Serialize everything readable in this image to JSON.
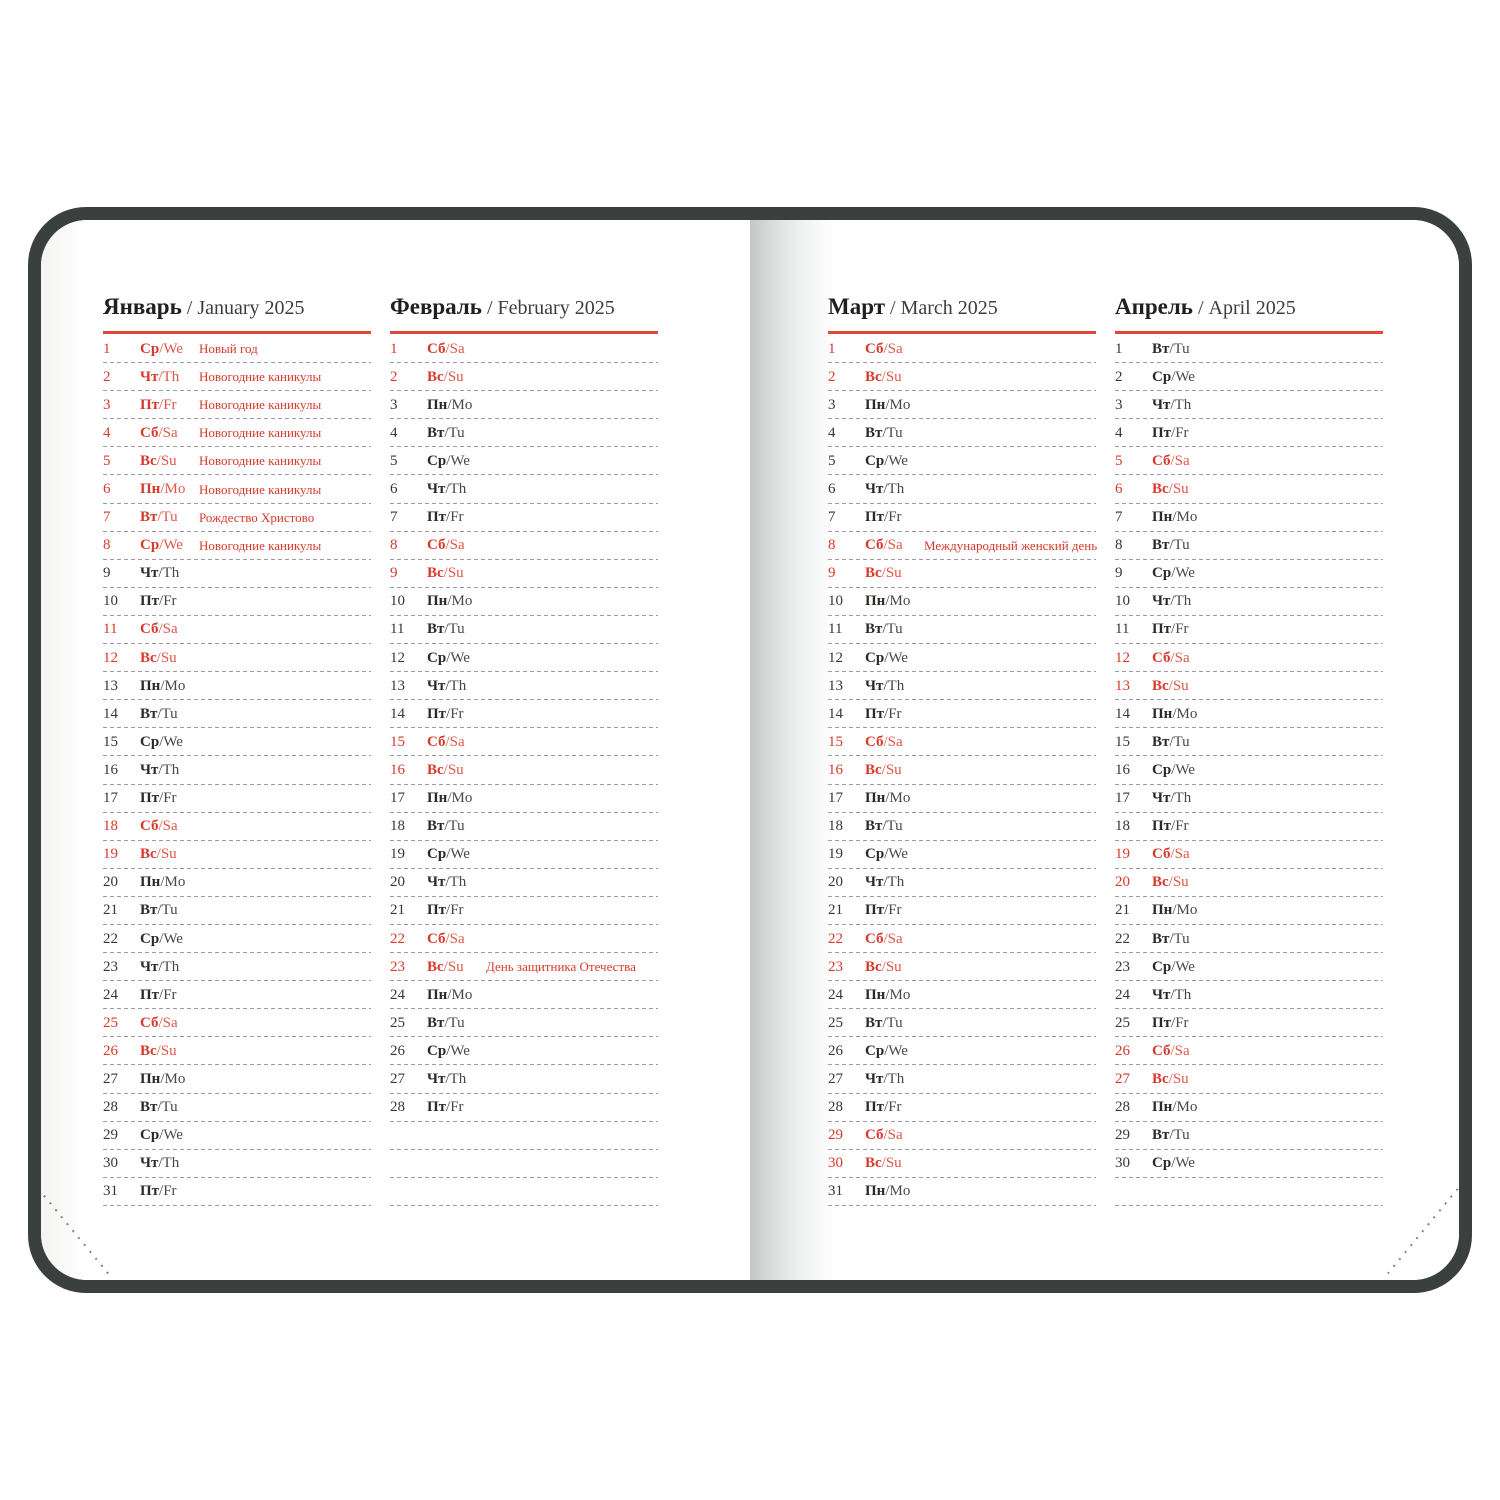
{
  "colors": {
    "cover": "#3a403e",
    "page": "#ffffff",
    "accent_red": "#d7392b",
    "header_underline_red": "#e0463a",
    "text_black": "#2c2a27",
    "dash_gray": "#9d9d9b"
  },
  "day_fields": [
    "day",
    "weekday_ru",
    "weekday_en",
    "is_red",
    "holiday"
  ],
  "months": [
    {
      "name_ru": "Январь",
      "separator": "/",
      "name_en": "January 2025",
      "trailing_empty_rows": 0,
      "days": [
        [
          1,
          "Ср",
          "We",
          1,
          "Новый год"
        ],
        [
          2,
          "Чт",
          "Th",
          1,
          "Новогодние каникулы"
        ],
        [
          3,
          "Пт",
          "Fr",
          1,
          "Новогодние каникулы"
        ],
        [
          4,
          "Сб",
          "Sa",
          1,
          "Новогодние каникулы"
        ],
        [
          5,
          "Вс",
          "Su",
          1,
          "Новогодние каникулы"
        ],
        [
          6,
          "Пн",
          "Mo",
          1,
          "Новогодние каникулы"
        ],
        [
          7,
          "Вт",
          "Tu",
          1,
          "Рождество Христово"
        ],
        [
          8,
          "Ср",
          "We",
          1,
          "Новогодние каникулы"
        ],
        [
          9,
          "Чт",
          "Th",
          0,
          ""
        ],
        [
          10,
          "Пт",
          "Fr",
          0,
          ""
        ],
        [
          11,
          "Сб",
          "Sa",
          1,
          ""
        ],
        [
          12,
          "Вс",
          "Su",
          1,
          ""
        ],
        [
          13,
          "Пн",
          "Mo",
          0,
          ""
        ],
        [
          14,
          "Вт",
          "Tu",
          0,
          ""
        ],
        [
          15,
          "Ср",
          "We",
          0,
          ""
        ],
        [
          16,
          "Чт",
          "Th",
          0,
          ""
        ],
        [
          17,
          "Пт",
          "Fr",
          0,
          ""
        ],
        [
          18,
          "Сб",
          "Sa",
          1,
          ""
        ],
        [
          19,
          "Вс",
          "Su",
          1,
          ""
        ],
        [
          20,
          "Пн",
          "Mo",
          0,
          ""
        ],
        [
          21,
          "Вт",
          "Tu",
          0,
          ""
        ],
        [
          22,
          "Ср",
          "We",
          0,
          ""
        ],
        [
          23,
          "Чт",
          "Th",
          0,
          ""
        ],
        [
          24,
          "Пт",
          "Fr",
          0,
          ""
        ],
        [
          25,
          "Сб",
          "Sa",
          1,
          ""
        ],
        [
          26,
          "Вс",
          "Su",
          1,
          ""
        ],
        [
          27,
          "Пн",
          "Mo",
          0,
          ""
        ],
        [
          28,
          "Вт",
          "Tu",
          0,
          ""
        ],
        [
          29,
          "Ср",
          "We",
          0,
          ""
        ],
        [
          30,
          "Чт",
          "Th",
          0,
          ""
        ],
        [
          31,
          "Пт",
          "Fr",
          0,
          ""
        ]
      ]
    },
    {
      "name_ru": "Февраль",
      "separator": "/",
      "name_en": "February 2025",
      "trailing_empty_rows": 3,
      "days": [
        [
          1,
          "Сб",
          "Sa",
          1,
          ""
        ],
        [
          2,
          "Вс",
          "Su",
          1,
          ""
        ],
        [
          3,
          "Пн",
          "Mo",
          0,
          ""
        ],
        [
          4,
          "Вт",
          "Tu",
          0,
          ""
        ],
        [
          5,
          "Ср",
          "We",
          0,
          ""
        ],
        [
          6,
          "Чт",
          "Th",
          0,
          ""
        ],
        [
          7,
          "Пт",
          "Fr",
          0,
          ""
        ],
        [
          8,
          "Сб",
          "Sa",
          1,
          ""
        ],
        [
          9,
          "Вс",
          "Su",
          1,
          ""
        ],
        [
          10,
          "Пн",
          "Mo",
          0,
          ""
        ],
        [
          11,
          "Вт",
          "Tu",
          0,
          ""
        ],
        [
          12,
          "Ср",
          "We",
          0,
          ""
        ],
        [
          13,
          "Чт",
          "Th",
          0,
          ""
        ],
        [
          14,
          "Пт",
          "Fr",
          0,
          ""
        ],
        [
          15,
          "Сб",
          "Sa",
          1,
          ""
        ],
        [
          16,
          "Вс",
          "Su",
          1,
          ""
        ],
        [
          17,
          "Пн",
          "Mo",
          0,
          ""
        ],
        [
          18,
          "Вт",
          "Tu",
          0,
          ""
        ],
        [
          19,
          "Ср",
          "We",
          0,
          ""
        ],
        [
          20,
          "Чт",
          "Th",
          0,
          ""
        ],
        [
          21,
          "Пт",
          "Fr",
          0,
          ""
        ],
        [
          22,
          "Сб",
          "Sa",
          1,
          ""
        ],
        [
          23,
          "Вс",
          "Su",
          1,
          "День защитника Отечества"
        ],
        [
          24,
          "Пн",
          "Mo",
          0,
          ""
        ],
        [
          25,
          "Вт",
          "Tu",
          0,
          ""
        ],
        [
          26,
          "Ср",
          "We",
          0,
          ""
        ],
        [
          27,
          "Чт",
          "Th",
          0,
          ""
        ],
        [
          28,
          "Пт",
          "Fr",
          0,
          ""
        ]
      ]
    },
    {
      "name_ru": "Март",
      "separator": "/",
      "name_en": "March 2025",
      "trailing_empty_rows": 0,
      "days": [
        [
          1,
          "Сб",
          "Sa",
          1,
          ""
        ],
        [
          2,
          "Вс",
          "Su",
          1,
          ""
        ],
        [
          3,
          "Пн",
          "Mo",
          0,
          ""
        ],
        [
          4,
          "Вт",
          "Tu",
          0,
          ""
        ],
        [
          5,
          "Ср",
          "We",
          0,
          ""
        ],
        [
          6,
          "Чт",
          "Th",
          0,
          ""
        ],
        [
          7,
          "Пт",
          "Fr",
          0,
          ""
        ],
        [
          8,
          "Сб",
          "Sa",
          1,
          "Международный женский день"
        ],
        [
          9,
          "Вс",
          "Su",
          1,
          ""
        ],
        [
          10,
          "Пн",
          "Mo",
          0,
          ""
        ],
        [
          11,
          "Вт",
          "Tu",
          0,
          ""
        ],
        [
          12,
          "Ср",
          "We",
          0,
          ""
        ],
        [
          13,
          "Чт",
          "Th",
          0,
          ""
        ],
        [
          14,
          "Пт",
          "Fr",
          0,
          ""
        ],
        [
          15,
          "Сб",
          "Sa",
          1,
          ""
        ],
        [
          16,
          "Вс",
          "Su",
          1,
          ""
        ],
        [
          17,
          "Пн",
          "Mo",
          0,
          ""
        ],
        [
          18,
          "Вт",
          "Tu",
          0,
          ""
        ],
        [
          19,
          "Ср",
          "We",
          0,
          ""
        ],
        [
          20,
          "Чт",
          "Th",
          0,
          ""
        ],
        [
          21,
          "Пт",
          "Fr",
          0,
          ""
        ],
        [
          22,
          "Сб",
          "Sa",
          1,
          ""
        ],
        [
          23,
          "Вс",
          "Su",
          1,
          ""
        ],
        [
          24,
          "Пн",
          "Mo",
          0,
          ""
        ],
        [
          25,
          "Вт",
          "Tu",
          0,
          ""
        ],
        [
          26,
          "Ср",
          "We",
          0,
          ""
        ],
        [
          27,
          "Чт",
          "Th",
          0,
          ""
        ],
        [
          28,
          "Пт",
          "Fr",
          0,
          ""
        ],
        [
          29,
          "Сб",
          "Sa",
          1,
          ""
        ],
        [
          30,
          "Вс",
          "Su",
          1,
          ""
        ],
        [
          31,
          "Пн",
          "Mo",
          0,
          ""
        ]
      ]
    },
    {
      "name_ru": "Апрель",
      "separator": "/",
      "name_en": "April 2025",
      "trailing_empty_rows": 1,
      "days": [
        [
          1,
          "Вт",
          "Tu",
          0,
          ""
        ],
        [
          2,
          "Ср",
          "We",
          0,
          ""
        ],
        [
          3,
          "Чт",
          "Th",
          0,
          ""
        ],
        [
          4,
          "Пт",
          "Fr",
          0,
          ""
        ],
        [
          5,
          "Сб",
          "Sa",
          1,
          ""
        ],
        [
          6,
          "Вс",
          "Su",
          1,
          ""
        ],
        [
          7,
          "Пн",
          "Mo",
          0,
          ""
        ],
        [
          8,
          "Вт",
          "Tu",
          0,
          ""
        ],
        [
          9,
          "Ср",
          "We",
          0,
          ""
        ],
        [
          10,
          "Чт",
          "Th",
          0,
          ""
        ],
        [
          11,
          "Пт",
          "Fr",
          0,
          ""
        ],
        [
          12,
          "Сб",
          "Sa",
          1,
          ""
        ],
        [
          13,
          "Вс",
          "Su",
          1,
          ""
        ],
        [
          14,
          "Пн",
          "Mo",
          0,
          ""
        ],
        [
          15,
          "Вт",
          "Tu",
          0,
          ""
        ],
        [
          16,
          "Ср",
          "We",
          0,
          ""
        ],
        [
          17,
          "Чт",
          "Th",
          0,
          ""
        ],
        [
          18,
          "Пт",
          "Fr",
          0,
          ""
        ],
        [
          19,
          "Сб",
          "Sa",
          1,
          ""
        ],
        [
          20,
          "Вс",
          "Su",
          1,
          ""
        ],
        [
          21,
          "Пн",
          "Mo",
          0,
          ""
        ],
        [
          22,
          "Вт",
          "Tu",
          0,
          ""
        ],
        [
          23,
          "Ср",
          "We",
          0,
          ""
        ],
        [
          24,
          "Чт",
          "Th",
          0,
          ""
        ],
        [
          25,
          "Пт",
          "Fr",
          0,
          ""
        ],
        [
          26,
          "Сб",
          "Sa",
          1,
          ""
        ],
        [
          27,
          "Вс",
          "Su",
          1,
          ""
        ],
        [
          28,
          "Пн",
          "Mo",
          0,
          ""
        ],
        [
          29,
          "Вт",
          "Tu",
          0,
          ""
        ],
        [
          30,
          "Ср",
          "We",
          0,
          ""
        ]
      ]
    }
  ]
}
